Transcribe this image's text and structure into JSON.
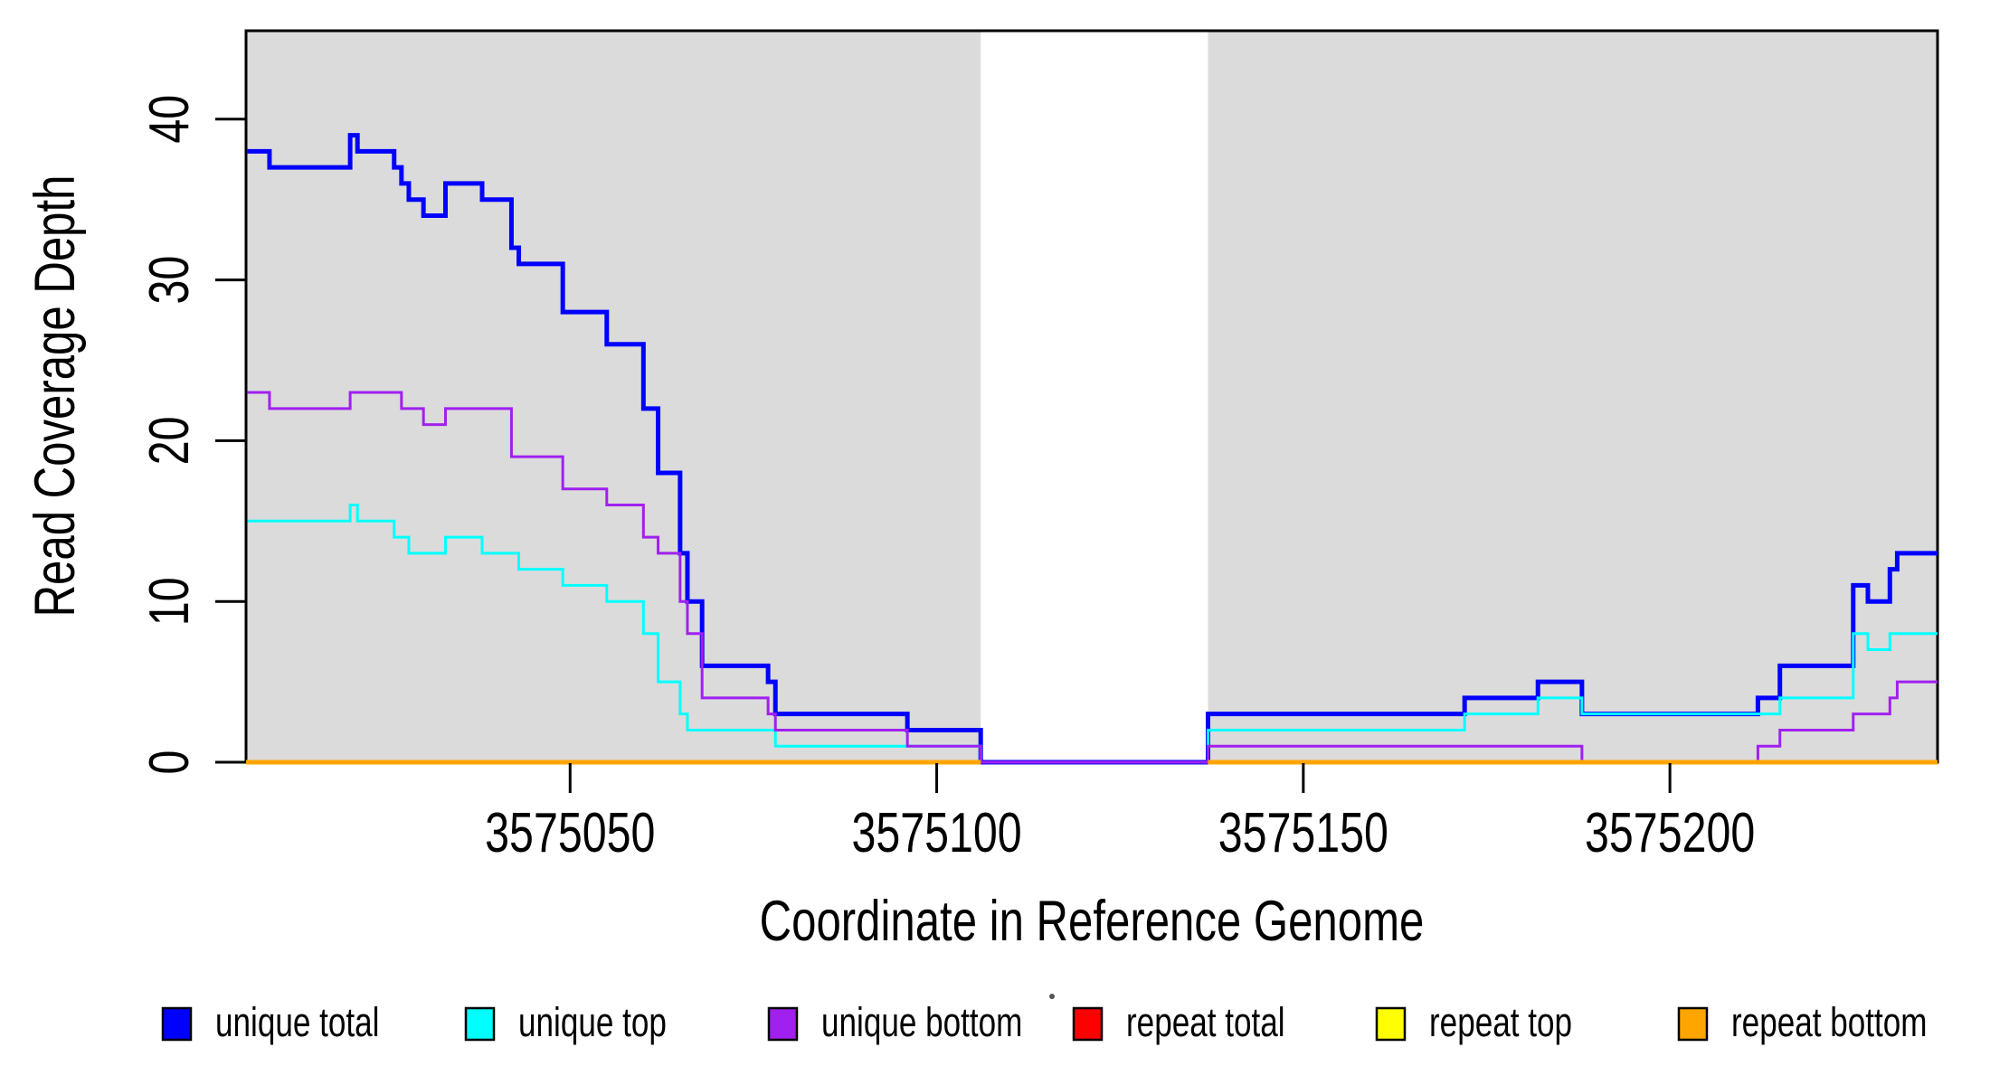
{
  "figure": {
    "background": "#ffffff",
    "plot_background_shaded": "#dbdbdb",
    "gap_background": "#ffffff",
    "border_color": "#000000"
  },
  "chart_data": {
    "type": "line",
    "subtype": "step-coverage",
    "title": "",
    "xlabel": "Coordinate in Reference Genome",
    "ylabel": "Read Coverage Depth",
    "xlim": [
      3575005.8,
      3575236.5
    ],
    "ylim": [
      0,
      45.5
    ],
    "grid": false,
    "legend_position": "bottom",
    "x_ticks": [
      "3575050",
      "3575100",
      "3575150",
      "3575200"
    ],
    "x_tick_values": [
      3575050,
      3575100,
      3575150,
      3575200
    ],
    "y_ticks": [
      "0",
      "10",
      "20",
      "30",
      "40"
    ],
    "y_tick_values": [
      0,
      10,
      20,
      30,
      40
    ],
    "shaded_regions": [
      [
        3575005.8,
        3575106
      ],
      [
        3575137,
        3575236.5
      ]
    ],
    "uncovered_gap": [
      3575106,
      3575137
    ],
    "series": [
      {
        "name": "unique total",
        "color": "#0000ff",
        "width": 5,
        "steps": [
          [
            3575006,
            38
          ],
          [
            3575009,
            37
          ],
          [
            3575020,
            39
          ],
          [
            3575021,
            38
          ],
          [
            3575026,
            37
          ],
          [
            3575027,
            36
          ],
          [
            3575028,
            35
          ],
          [
            3575030,
            34
          ],
          [
            3575033,
            36
          ],
          [
            3575038,
            35
          ],
          [
            3575042,
            32
          ],
          [
            3575043,
            31
          ],
          [
            3575049,
            28
          ],
          [
            3575055,
            26
          ],
          [
            3575060,
            22
          ],
          [
            3575062,
            18
          ],
          [
            3575065,
            13
          ],
          [
            3575066,
            10
          ],
          [
            3575068,
            6
          ],
          [
            3575077,
            5
          ],
          [
            3575078,
            3
          ],
          [
            3575096,
            2
          ],
          [
            3575106,
            0
          ],
          [
            3575137,
            3
          ],
          [
            3575172,
            4
          ],
          [
            3575182,
            5
          ],
          [
            3575188,
            3
          ],
          [
            3575212,
            4
          ],
          [
            3575215,
            6
          ],
          [
            3575225,
            11
          ],
          [
            3575227,
            10
          ],
          [
            3575230,
            12
          ],
          [
            3575231,
            13
          ]
        ],
        "end": 3575236.5
      },
      {
        "name": "unique top",
        "color": "#00ffff",
        "width": 3,
        "steps": [
          [
            3575006,
            15
          ],
          [
            3575020,
            16
          ],
          [
            3575021,
            15
          ],
          [
            3575026,
            14
          ],
          [
            3575028,
            13
          ],
          [
            3575033,
            14
          ],
          [
            3575038,
            13
          ],
          [
            3575043,
            12
          ],
          [
            3575049,
            11
          ],
          [
            3575055,
            10
          ],
          [
            3575060,
            8
          ],
          [
            3575062,
            5
          ],
          [
            3575065,
            3
          ],
          [
            3575066,
            2
          ],
          [
            3575078,
            1
          ],
          [
            3575106,
            0
          ],
          [
            3575137,
            2
          ],
          [
            3575172,
            3
          ],
          [
            3575182,
            4
          ],
          [
            3575188,
            3
          ],
          [
            3575215,
            4
          ],
          [
            3575225,
            8
          ],
          [
            3575227,
            7
          ],
          [
            3575230,
            8
          ]
        ],
        "end": 3575236.5
      },
      {
        "name": "unique bottom",
        "color": "#a020f0",
        "width": 3,
        "steps": [
          [
            3575006,
            23
          ],
          [
            3575009,
            22
          ],
          [
            3575020,
            23
          ],
          [
            3575027,
            22
          ],
          [
            3575030,
            21
          ],
          [
            3575033,
            22
          ],
          [
            3575042,
            19
          ],
          [
            3575049,
            17
          ],
          [
            3575055,
            16
          ],
          [
            3575060,
            14
          ],
          [
            3575062,
            13
          ],
          [
            3575065,
            10
          ],
          [
            3575066,
            8
          ],
          [
            3575068,
            4
          ],
          [
            3575077,
            3
          ],
          [
            3575078,
            2
          ],
          [
            3575096,
            1
          ],
          [
            3575106,
            0
          ],
          [
            3575137,
            1
          ],
          [
            3575188,
            0
          ],
          [
            3575212,
            1
          ],
          [
            3575215,
            2
          ],
          [
            3575225,
            3
          ],
          [
            3575230,
            4
          ],
          [
            3575231,
            5
          ]
        ],
        "end": 3575236.5
      },
      {
        "name": "repeat total",
        "color": "#ff0000",
        "width": 3,
        "flat_value": 0,
        "segments": [
          [
            3575005.8,
            3575106
          ],
          [
            3575137,
            3575236.5
          ]
        ]
      },
      {
        "name": "repeat top",
        "color": "#ffff00",
        "width": 3,
        "flat_value": 0,
        "segments": [
          [
            3575005.8,
            3575106
          ],
          [
            3575137,
            3575236.5
          ]
        ]
      },
      {
        "name": "repeat bottom",
        "color": "#ffa500",
        "width": 5,
        "flat_value": 0,
        "segments": [
          [
            3575005.8,
            3575106
          ],
          [
            3575137,
            3575236.5
          ]
        ]
      }
    ],
    "legend": [
      {
        "label": "unique total",
        "color": "#0000ff"
      },
      {
        "label": "unique top",
        "color": "#00ffff"
      },
      {
        "label": "unique bottom",
        "color": "#a020f0"
      },
      {
        "label": "repeat total",
        "color": "#ff0000"
      },
      {
        "label": "repeat top",
        "color": "#ffff00"
      },
      {
        "label": "repeat bottom",
        "color": "#ffa500"
      }
    ],
    "stray_dot_before_repeat_total": true
  }
}
